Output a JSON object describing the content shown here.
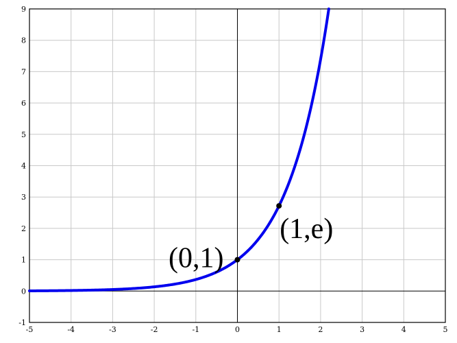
{
  "chart_data": {
    "type": "line",
    "function": "exp(x)",
    "xlim": [
      -5,
      5
    ],
    "ylim": [
      -1,
      9
    ],
    "x_ticks": [
      -5,
      -4,
      -3,
      -2,
      -1,
      0,
      1,
      2,
      3,
      4,
      5
    ],
    "y_ticks": [
      -1,
      0,
      1,
      2,
      3,
      4,
      5,
      6,
      7,
      8,
      9
    ],
    "grid": true,
    "series": [
      {
        "color": "#0000ee",
        "x": [
          -5,
          -4.5,
          -4,
          -3.5,
          -3,
          -2.5,
          -2,
          -1.5,
          -1,
          -0.5,
          0,
          0.25,
          0.5,
          0.75,
          1,
          1.25,
          1.5,
          1.75,
          2,
          2.197
        ],
        "y": [
          0.0067,
          0.0111,
          0.0183,
          0.0302,
          0.0498,
          0.0821,
          0.1353,
          0.2231,
          0.3679,
          0.6065,
          1,
          1.284,
          1.6487,
          2.117,
          2.7183,
          3.4903,
          4.4817,
          5.7546,
          7.3891,
          9.0
        ]
      }
    ],
    "points": [
      {
        "x": 0,
        "y": 1,
        "label": "(0,1)"
      },
      {
        "x": 1,
        "y": 2.7183,
        "label": "(1,e)"
      }
    ]
  }
}
